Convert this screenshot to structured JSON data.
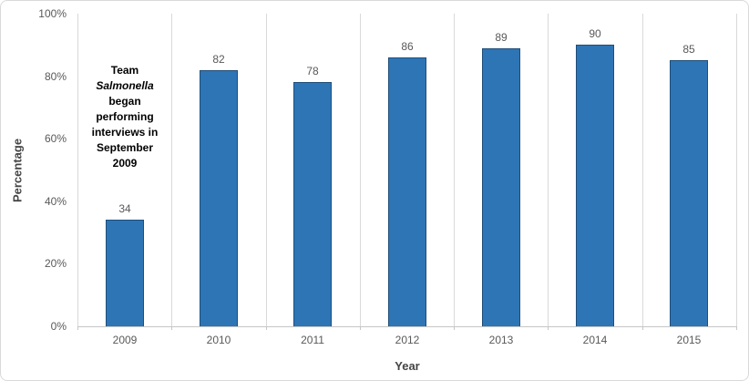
{
  "chart_data": {
    "type": "bar",
    "title": "",
    "categories": [
      "2009",
      "2010",
      "2011",
      "2012",
      "2013",
      "2014",
      "2015"
    ],
    "values": [
      34,
      82,
      78,
      86,
      89,
      90,
      85
    ],
    "data_labels": [
      "34",
      "82",
      "78",
      "86",
      "89",
      "90",
      "85"
    ],
    "xlabel": "Year",
    "ylabel": "Percentage",
    "ylim": [
      0,
      100
    ],
    "y_ticks": [
      "0%",
      "20%",
      "40%",
      "60%",
      "80%",
      "100%"
    ],
    "y_tick_values": [
      0,
      20,
      40,
      60,
      80,
      100
    ],
    "gridlines": "vertical-only",
    "legend": "none",
    "annotation": {
      "lines": [
        "Team",
        "Salmonella",
        "began",
        "performing",
        "interviews in",
        "September",
        "2009"
      ],
      "italic_line": "Salmonella"
    },
    "colors": {
      "bar_fill": "#2e75b6",
      "bar_border": "#1f4e79",
      "gridline": "#d9d9d9",
      "axis_line": "#c6c6c6",
      "tick_label": "#595959",
      "axis_title": "#454545",
      "annotation_text": "#000000",
      "chart_border": "#d9d9d9",
      "background": "#ffffff"
    }
  }
}
